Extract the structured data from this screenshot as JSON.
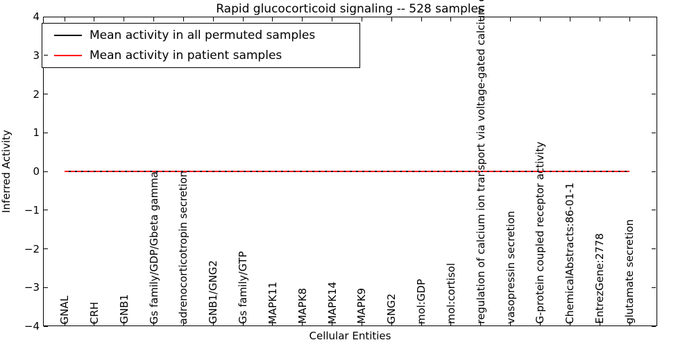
{
  "chart_data": {
    "type": "line",
    "title": "Rapid glucocorticoid signaling -- 528 samples",
    "xlabel": "Cellular Entities",
    "ylabel": "Inferred Activity",
    "ylim": [
      -4,
      4
    ],
    "yticks": [
      -4,
      -3,
      -2,
      -1,
      0,
      1,
      2,
      3,
      4
    ],
    "grid": false,
    "legend_position": "upper left",
    "categories": [
      "GNAL",
      "CRH",
      "GNB1",
      "Gs family/GDP/Gbeta gamma",
      "adrenocorticotropin secretion",
      "GNB1/GNG2",
      "Gs family/GTP",
      "MAPK11",
      "MAPK8",
      "MAPK14",
      "MAPK9",
      "GNG2",
      "mol:GDP",
      "mol:cortisol",
      "regulation of calcium ion transport via voltage-gated calcium chan",
      "vasopressin secretion",
      "G-protein coupled receptor activity",
      "ChemicalAbstracts:86-01-1",
      "EntrezGene:2778",
      "glutamate secretion"
    ],
    "series": [
      {
        "name": "Mean activity in all permuted samples",
        "color": "#000000",
        "style": "solid",
        "values": [
          0,
          0,
          0,
          0,
          0,
          0,
          0,
          0,
          0,
          0,
          0,
          0,
          0,
          0,
          0,
          0,
          0,
          0,
          0,
          0
        ]
      },
      {
        "name": "Mean activity in patient samples",
        "color": "#ff0000",
        "style": "dashed",
        "values": [
          0,
          0,
          0,
          0,
          0,
          0,
          0,
          0,
          0,
          0,
          0,
          0,
          0,
          0,
          0,
          0,
          0,
          0,
          0,
          0
        ]
      }
    ]
  },
  "colors": {
    "frame": "#000000",
    "background": "#ffffff",
    "permuted_line": "#000000",
    "patient_line": "#ff0000"
  }
}
